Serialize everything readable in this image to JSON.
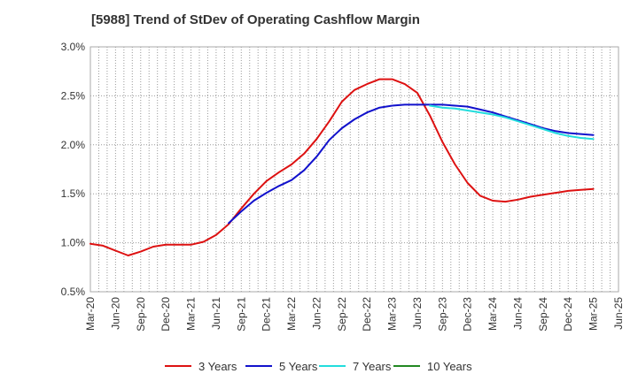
{
  "chart_data": {
    "type": "line",
    "title": "[5988]  Trend of StDev of Operating Cashflow Margin",
    "xlabel": "",
    "ylabel": "",
    "ylim": [
      0.5,
      3.0
    ],
    "y_ticks": [
      0.5,
      1.0,
      1.5,
      2.0,
      2.5,
      3.0
    ],
    "y_tick_labels": [
      "0.5%",
      "1.0%",
      "1.5%",
      "2.0%",
      "2.5%",
      "3.0%"
    ],
    "x_range": [
      0,
      21
    ],
    "x_tick_labels": [
      "Mar-20",
      "Jun-20",
      "Sep-20",
      "Dec-20",
      "Mar-21",
      "Jun-21",
      "Sep-21",
      "Dec-21",
      "Mar-22",
      "Jun-22",
      "Sep-22",
      "Dec-22",
      "Mar-23",
      "Jun-23",
      "Sep-23",
      "Dec-23",
      "Mar-24",
      "Jun-24",
      "Sep-24",
      "Dec-24",
      "Mar-25",
      "Jun-25"
    ],
    "grid": true,
    "legend_position": "bottom",
    "series": [
      {
        "name": "3 Years",
        "color": "#dd1111",
        "x": [
          0,
          0.5,
          1,
          1.5,
          2,
          2.5,
          3,
          3.5,
          4,
          4.5,
          5,
          5.5,
          6,
          6.5,
          7,
          7.5,
          8,
          8.5,
          9,
          9.5,
          10,
          10.5,
          11,
          11.5,
          12,
          12.5,
          13,
          13.5,
          14,
          14.5,
          15,
          15.5,
          16,
          16.5,
          17,
          17.5,
          18,
          18.5,
          19,
          19.5,
          20
        ],
        "values": [
          0.99,
          0.97,
          0.92,
          0.87,
          0.91,
          0.96,
          0.98,
          0.98,
          0.98,
          1.01,
          1.08,
          1.19,
          1.35,
          1.5,
          1.63,
          1.72,
          1.8,
          1.91,
          2.06,
          2.24,
          2.44,
          2.56,
          2.62,
          2.67,
          2.67,
          2.62,
          2.53,
          2.3,
          2.03,
          1.8,
          1.61,
          1.48,
          1.43,
          1.42,
          1.44,
          1.47,
          1.49,
          1.51,
          1.53,
          1.54,
          1.55
        ]
      },
      {
        "name": "5 Years",
        "color": "#1111cc",
        "x": [
          5.5,
          6,
          6.5,
          7,
          7.5,
          8,
          8.5,
          9,
          9.5,
          10,
          10.5,
          11,
          11.5,
          12,
          12.5,
          13,
          13.5,
          14,
          14.5,
          15,
          15.5,
          16,
          16.5,
          17,
          17.5,
          18,
          18.5,
          19,
          19.5,
          20
        ],
        "values": [
          1.2,
          1.32,
          1.43,
          1.51,
          1.58,
          1.64,
          1.74,
          1.88,
          2.05,
          2.17,
          2.26,
          2.33,
          2.38,
          2.4,
          2.41,
          2.41,
          2.41,
          2.41,
          2.4,
          2.39,
          2.36,
          2.33,
          2.29,
          2.25,
          2.21,
          2.17,
          2.14,
          2.12,
          2.11,
          2.1
        ]
      },
      {
        "name": "7 Years",
        "color": "#22dddd",
        "x": [
          13.5,
          14,
          14.5,
          15,
          15.5,
          16,
          16.5,
          17,
          17.5,
          18,
          18.5,
          19,
          19.5,
          20
        ],
        "values": [
          2.4,
          2.38,
          2.37,
          2.35,
          2.33,
          2.31,
          2.28,
          2.24,
          2.2,
          2.16,
          2.12,
          2.09,
          2.07,
          2.06
        ]
      },
      {
        "name": "10 Years",
        "color": "#228822",
        "x": [],
        "values": []
      }
    ]
  }
}
